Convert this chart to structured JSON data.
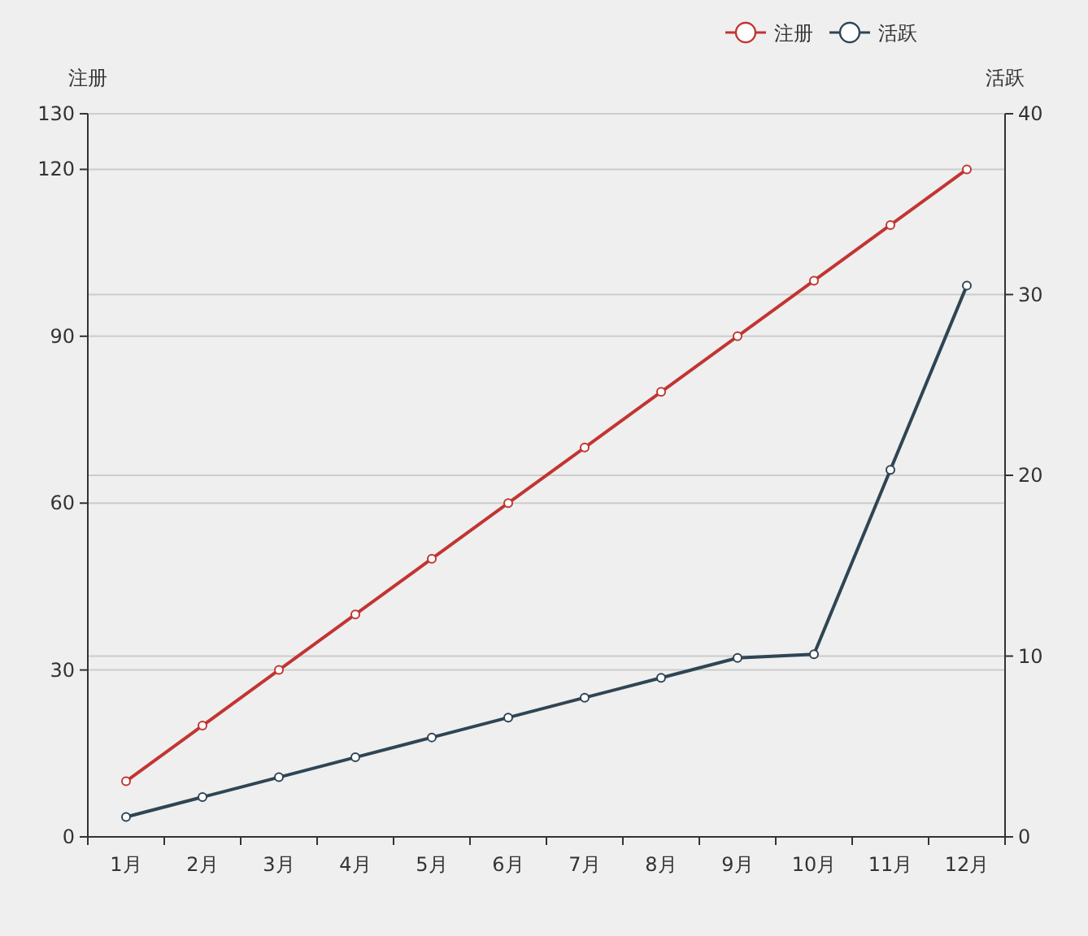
{
  "chart_data": {
    "type": "line",
    "ylabel": "注册",
    "y2label": "活跃",
    "categories": [
      "1月",
      "2月",
      "3月",
      "4月",
      "5月",
      "6月",
      "7月",
      "8月",
      "9月",
      "10月",
      "11月",
      "12月"
    ],
    "series": [
      {
        "name": "注册",
        "color": "#c23531",
        "values": [
          10,
          20,
          30,
          40,
          50,
          60,
          70,
          80,
          90,
          100,
          110,
          120
        ]
      },
      {
        "name": "活跃",
        "color": "#2f4554",
        "axis": "y2",
        "values": [
          1.1,
          2.2,
          3.3,
          4.4,
          5.5,
          6.6,
          7.7,
          8.8,
          9.9,
          10.1,
          20.3,
          30.5
        ]
      }
    ],
    "ylim": [
      0,
      130
    ],
    "yticks": [
      0,
      30,
      60,
      90,
      120,
      130
    ],
    "y2lim": [
      0,
      40
    ],
    "y2ticks": [
      0,
      10,
      20,
      30,
      40
    ],
    "grid": true,
    "legend": "top right",
    "marker": "circle",
    "line_style": "solid"
  }
}
